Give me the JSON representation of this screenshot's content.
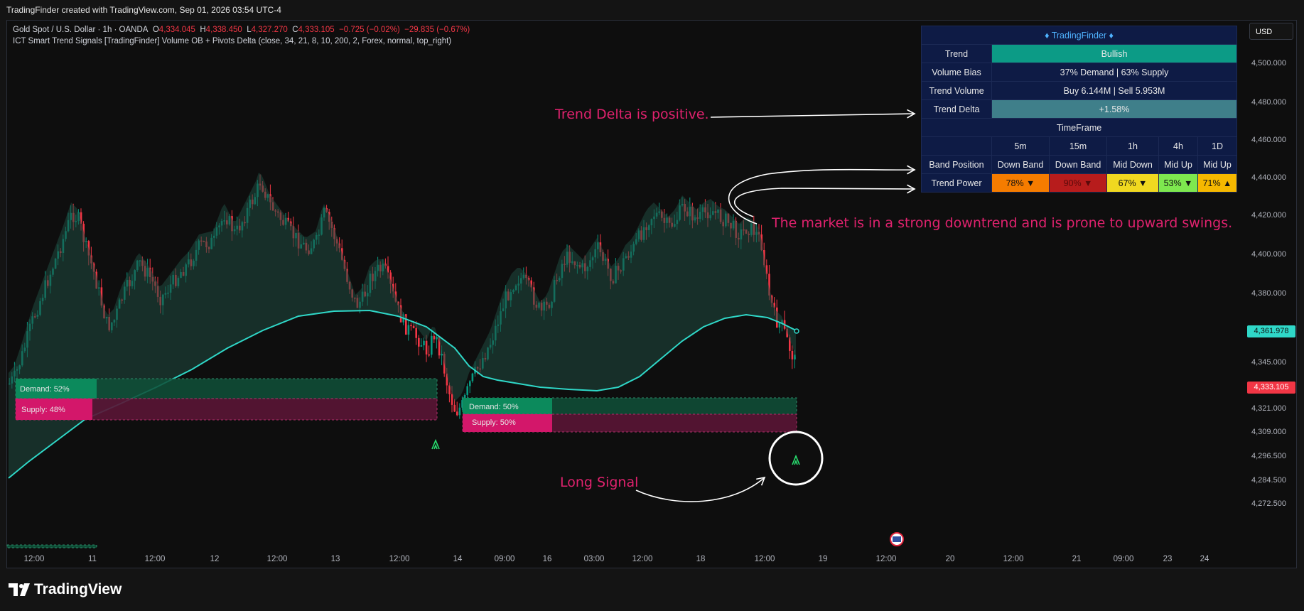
{
  "header": {
    "title": "TradingFinder created with TradingView.com, Sep 01, 2026 03:54 UTC-4"
  },
  "legend": {
    "symbol": "Gold Spot / U.S. Dollar · 1h · OANDA",
    "o_label": "O",
    "o": "4,334.045",
    "h_label": "H",
    "h": "4,338.450",
    "l_label": "L",
    "l": "4,327.270",
    "c_label": "C",
    "c": "4,333.105",
    "change": "−0.725 (−0.02%)",
    "change2": "−29.835 (−0.67%)",
    "indicator": "ICT Smart Trend Signals [TradingFinder] Volume OB + Pivots Delta (close, 34, 21, 8, 10, 200, 2, Forex, normal, top_right)"
  },
  "currency": "USD",
  "price_axis": {
    "ticks": [
      {
        "label": "4,500.000",
        "value": 4500
      },
      {
        "label": "4,480.000",
        "value": 4480
      },
      {
        "label": "4,460.000",
        "value": 4460
      },
      {
        "label": "4,440.000",
        "value": 4440
      },
      {
        "label": "4,420.000",
        "value": 4420
      },
      {
        "label": "4,400.000",
        "value": 4400
      },
      {
        "label": "4,380.000",
        "value": 4380
      },
      {
        "label": "4,345.000",
        "value": 4345
      },
      {
        "label": "4,321.000",
        "value": 4321
      },
      {
        "label": "4,309.000",
        "value": 4309
      },
      {
        "label": "4,296.500",
        "value": 4296.5
      },
      {
        "label": "4,284.500",
        "value": 4284.5
      },
      {
        "label": "4,272.500",
        "value": 4272.5
      }
    ],
    "ma_price": "4,361.978",
    "last_price": "4,333.105"
  },
  "time_axis": [
    "12:00",
    "11",
    "12:00",
    "12",
    "12:00",
    "13",
    "12:00",
    "14",
    "09:00",
    "16",
    "03:00",
    "12:00",
    "18",
    "12:00",
    "19",
    "12:00",
    "20",
    "12:00",
    "21",
    "09:00",
    "23",
    "24"
  ],
  "table": {
    "title": "♦ TradingFinder ♦",
    "rows": [
      {
        "label": "Trend",
        "value": "Bullish"
      },
      {
        "label": "Volume Bias",
        "value": "37% Demand  |  63% Supply"
      },
      {
        "label": "Trend Volume",
        "value": "Buy 6.144M | Sell 5.953M"
      },
      {
        "label": "Trend Delta",
        "value": "+1.58%"
      }
    ],
    "timeframe_label": "TimeFrame",
    "timeframes": [
      "5m",
      "15m",
      "1h",
      "4h",
      "1D"
    ],
    "band_label": "Band Position",
    "bands": [
      "Down Band",
      "Down Band",
      "Mid Down",
      "Mid Up",
      "Mid Up"
    ],
    "power_label": "Trend Power",
    "powers": [
      "78% ▼",
      "90% ▼",
      "67% ▼",
      "53% ▼",
      "71% ▲"
    ]
  },
  "zones": {
    "demand1": "Demand: 52%",
    "supply1": "Supply: 48%",
    "demand2": "Demand: 50%",
    "supply2": "Supply: 50%"
  },
  "annotations": {
    "delta_note": "Trend Delta is positive.",
    "market_note": "The market is in a strong downtrend and is prone to upward swings.",
    "long_note": "Long Signal"
  },
  "colors": {
    "bull": "#089981",
    "bear": "#f23645",
    "ma": "#2fd8c8",
    "note": "#e0226e"
  },
  "brand": "TradingView"
}
